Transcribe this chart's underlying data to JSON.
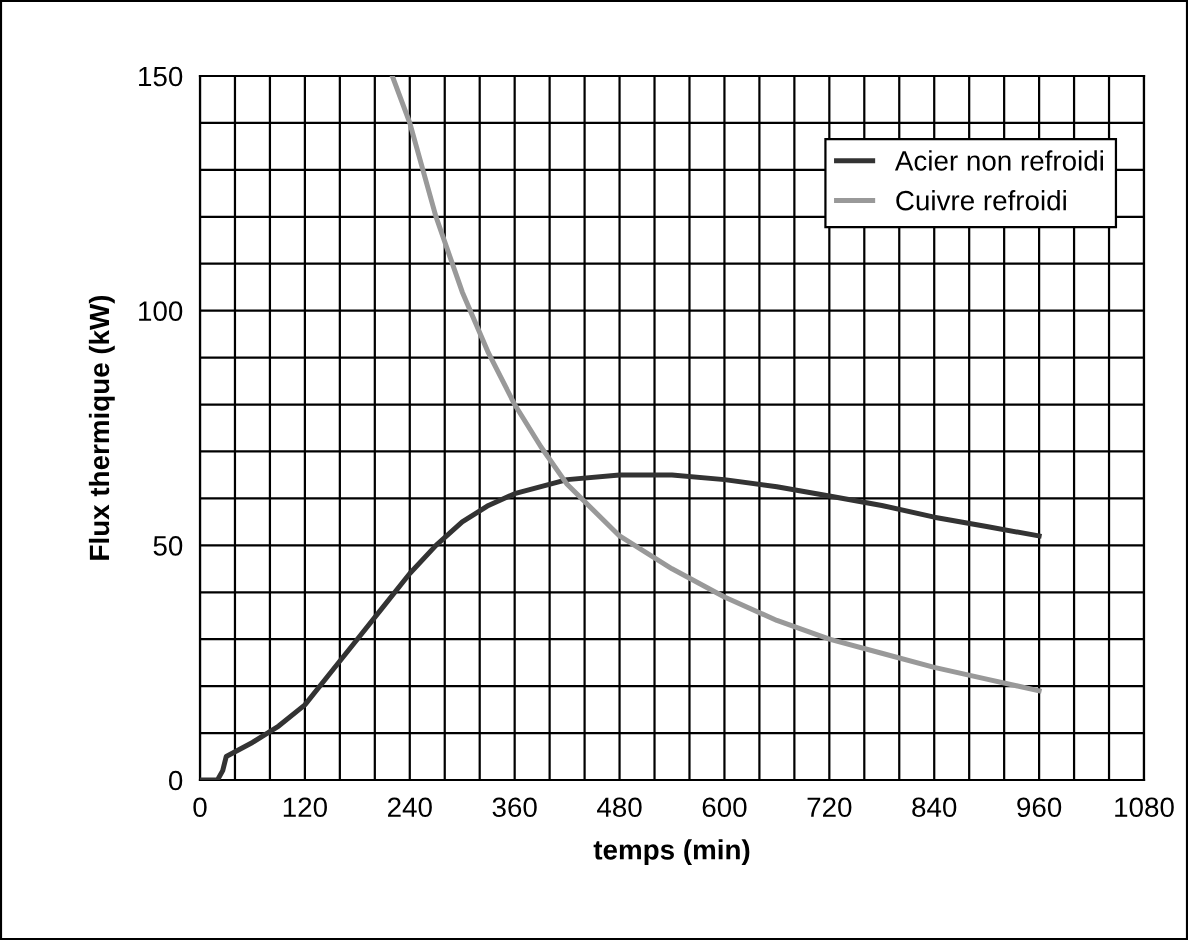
{
  "chart_data": {
    "type": "line",
    "xlabel": "temps (min)",
    "ylabel": "Flux thermique (kW)",
    "series": [
      {
        "name": "Acier non refroidi",
        "color": "#333333",
        "x": [
          0,
          20,
          26,
          30,
          45,
          60,
          90,
          120,
          150,
          180,
          210,
          240,
          270,
          300,
          330,
          360,
          420,
          480,
          540,
          600,
          660,
          720,
          780,
          840,
          900,
          960
        ],
        "values": [
          0,
          0,
          2,
          5,
          6.5,
          8,
          11.5,
          16,
          23,
          30,
          37,
          44,
          50,
          55,
          58.5,
          61,
          64,
          65,
          65,
          64,
          62.5,
          60.5,
          58.5,
          56,
          54,
          52
        ]
      },
      {
        "name": "Cuivre refroidi",
        "color": "#999999",
        "x": [
          220,
          240,
          270,
          300,
          330,
          360,
          390,
          420,
          480,
          540,
          600,
          660,
          720,
          780,
          840,
          900,
          960
        ],
        "values": [
          150,
          140,
          120,
          104,
          91,
          80,
          71,
          63,
          52,
          45,
          39,
          34,
          30,
          27,
          24,
          21.5,
          19
        ]
      }
    ],
    "xlim": [
      0,
      1080
    ],
    "ylim": [
      0,
      150
    ],
    "xticks": [
      0,
      {
        "value": 40,
        "label": null
      },
      {
        "value": 80,
        "label": null
      },
      120,
      {
        "value": 160,
        "label": null
      },
      {
        "value": 200,
        "label": null
      },
      240,
      {
        "value": 280,
        "label": null
      },
      {
        "value": 320,
        "label": null
      },
      360,
      {
        "value": 400,
        "label": null
      },
      {
        "value": 440,
        "label": null
      },
      480,
      {
        "value": 520,
        "label": null
      },
      {
        "value": 560,
        "label": null
      },
      600,
      {
        "value": 640,
        "label": null
      },
      {
        "value": 680,
        "label": null
      },
      720,
      {
        "value": 760,
        "label": null
      },
      {
        "value": 800,
        "label": null
      },
      840,
      {
        "value": 880,
        "label": null
      },
      {
        "value": 920,
        "label": null
      },
      960,
      {
        "value": 1000,
        "label": null
      },
      {
        "value": 1040,
        "label": null
      },
      1080
    ],
    "yticks": [
      0,
      {
        "value": 10,
        "label": null
      },
      {
        "value": 20,
        "label": null
      },
      {
        "value": 30,
        "label": null
      },
      {
        "value": 40,
        "label": null
      },
      50,
      {
        "value": 60,
        "label": null
      },
      {
        "value": 70,
        "label": null
      },
      {
        "value": 80,
        "label": null
      },
      {
        "value": 90,
        "label": null
      },
      100,
      {
        "value": 110,
        "label": null
      },
      {
        "value": 120,
        "label": null
      },
      {
        "value": 130,
        "label": null
      },
      {
        "value": 140,
        "label": null
      },
      150
    ],
    "grid": true,
    "legend": "top right",
    "marker": "none",
    "line_style": "solid"
  }
}
